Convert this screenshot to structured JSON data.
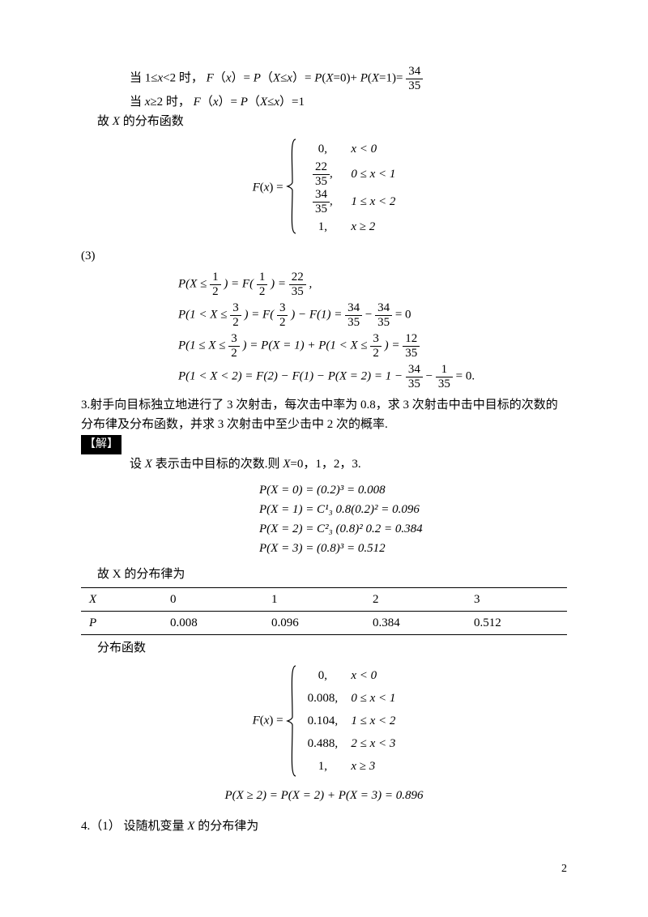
{
  "p1_line1a": "当 1≤",
  "p1_line1b": "<2 时，",
  "p1_line1c": "（",
  "p1_line1d": "）=",
  "p1_line1e": "（",
  "p1_line1f": "≤",
  "p1_line1g": "）=",
  "p1_line1h": "(",
  "p1_line1i": "=0)+",
  "p1_line1j": "(",
  "p1_line1k": "=1)=",
  "frac34": "34",
  "frac35": "35",
  "p1_x": "x",
  "p1_F": "F",
  "p1_P": "P",
  "p1_X": "X",
  "p2a": "当 ",
  "p2b": "≥2 时，",
  "p2c": "（",
  "p2d": "）=",
  "p2e": "（",
  "p2f": "≤",
  "p2g": "）=1",
  "p3": "故 ",
  "p3b": " 的分布函数",
  "fx_label_F": "F",
  "fx_label_x": "x",
  "fx_label_paren1": "(",
  "fx_label_paren2": ") =",
  "piece1": {
    "rows": [
      {
        "val": "0,",
        "cond": "x < 0"
      },
      {
        "val_num": "22",
        "val_den": "35",
        "comma": ",",
        "cond": "0 ≤ x < 1"
      },
      {
        "val_num": "34",
        "val_den": "35",
        "comma": ",",
        "cond": "1 ≤ x < 2"
      },
      {
        "val": "1,",
        "cond": "x ≥ 2"
      }
    ]
  },
  "sec3": "(3)",
  "eq1a_lhs": "P(X ≤ ",
  "eq1a_half_n": "1",
  "eq1a_half_d": "2",
  "eq1a_mid1": ") = F(",
  "eq1a_mid2": ") = ",
  "eq1a_rn": "22",
  "eq1a_rd": "35",
  "eq1a_end": ",",
  "eq1b_lhs": "P(1 < X ≤ ",
  "eq1b_3_2n": "3",
  "eq1b_3_2d": "2",
  "eq1b_mid1": ") = F(",
  "eq1b_mid2": ") − F(1) = ",
  "eq1b_34": "34",
  "eq1b_35": "35",
  "eq1b_minus": " − ",
  "eq1b_end": " = 0",
  "eq1c_lhs": "P(1 ≤ X ≤ ",
  "eq1c_mid": ") = P(X = 1) + P(1 < X ≤ ",
  "eq1c_mid2": ") = ",
  "eq1c_12": "12",
  "eq1c_35": "35",
  "eq1d_lhs": "P(1 < X < 2) = F(2) − F(1) − P(X = 2) = 1 − ",
  "eq1d_34": "34",
  "eq1d_35": "35",
  "eq1d_m": " − ",
  "eq1d_1": "1",
  "eq1d_end": " = 0.",
  "q3_text": "3.射手向目标独立地进行了 3 次射击，每次击中率为 0.8，求 3 次射击中击中目标的次数的分布律及分布函数，并求 3 次射击中至少击中 2 次的概率.",
  "jie": "【解】",
  "q3_sol1": "设 ",
  "q3_sol1b": " 表示击中目标的次数.则 ",
  "q3_sol1c": "=0，1，2，3.",
  "pcalc": [
    "P(X = 0) = (0.2)³ = 0.008",
    "P(X = 1) = C¹₃ 0.8(0.2)² = 0.096",
    "P(X = 2) = C²₃ (0.8)² 0.2 = 0.384",
    "P(X = 3) = (0.8)³ = 0.512"
  ],
  "dist_label": "故 X 的分布律为",
  "dist_table": {
    "header": [
      "X",
      "0",
      "1",
      "2",
      "3"
    ],
    "row": [
      "P",
      "0.008",
      "0.096",
      "0.384",
      "0.512"
    ]
  },
  "dist_func_label": "分布函数",
  "piece2": {
    "rows": [
      {
        "val": "0,",
        "cond": "x < 0"
      },
      {
        "val": "0.008,",
        "cond": "0 ≤ x < 1"
      },
      {
        "val": "0.104,",
        "cond": "1 ≤ x < 2"
      },
      {
        "val": "0.488,",
        "cond": "2 ≤ x < 3"
      },
      {
        "val": "1,",
        "cond": "x ≥ 3"
      }
    ]
  },
  "p_ge2": "P(X ≥ 2) = P(X = 2) + P(X = 3) = 0.896",
  "q4": "4.（1） 设随机变量 ",
  "q4b": " 的分布律为",
  "pagenum": "2",
  "brace_color": "#000000",
  "text_color": "#000000",
  "background_color": "#ffffff",
  "font_size_pt": 11
}
